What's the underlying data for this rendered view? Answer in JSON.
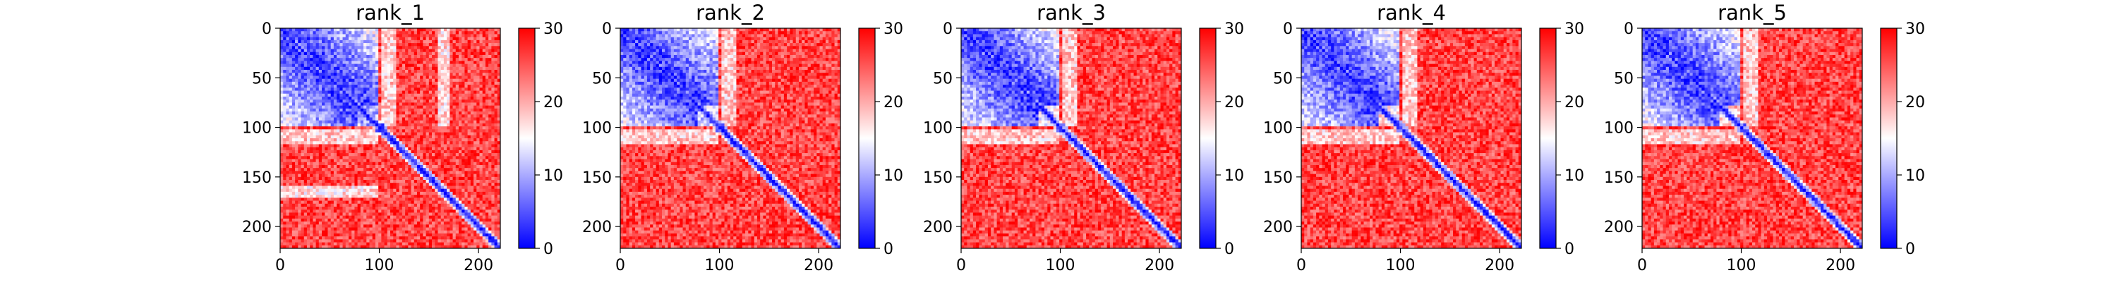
{
  "chart_data": [
    {
      "type": "heatmap",
      "title": "rank_1",
      "x_ticks": [
        0,
        100,
        200
      ],
      "y_ticks": [
        0,
        50,
        100,
        150,
        200
      ],
      "x_range": [
        0,
        222
      ],
      "y_range": [
        0,
        222
      ],
      "colorbar": {
        "ticks": [
          0,
          10,
          20,
          30
        ],
        "range": [
          0,
          30
        ],
        "colormap": "bwr"
      },
      "matrix_size": 222,
      "notes": "Pairwise distance matrix; low values (blue) on diagonal and within residues 0-100 block; high values (red) elsewhere."
    },
    {
      "type": "heatmap",
      "title": "rank_2",
      "x_ticks": [
        0,
        100,
        200
      ],
      "y_ticks": [
        0,
        50,
        100,
        150,
        200
      ],
      "x_range": [
        0,
        222
      ],
      "y_range": [
        0,
        222
      ],
      "colorbar": {
        "ticks": [
          0,
          10,
          20,
          30
        ],
        "range": [
          0,
          30
        ],
        "colormap": "bwr"
      },
      "matrix_size": 222
    },
    {
      "type": "heatmap",
      "title": "rank_3",
      "x_ticks": [
        0,
        100,
        200
      ],
      "y_ticks": [
        0,
        50,
        100,
        150,
        200
      ],
      "x_range": [
        0,
        222
      ],
      "y_range": [
        0,
        222
      ],
      "colorbar": {
        "ticks": [
          0,
          10,
          20,
          30
        ],
        "range": [
          0,
          30
        ],
        "colormap": "bwr"
      },
      "matrix_size": 222
    },
    {
      "type": "heatmap",
      "title": "rank_4",
      "x_ticks": [
        0,
        100,
        200
      ],
      "y_ticks": [
        0,
        50,
        100,
        150,
        200
      ],
      "x_range": [
        0,
        222
      ],
      "y_range": [
        0,
        222
      ],
      "colorbar": {
        "ticks": [
          0,
          10,
          20,
          30
        ],
        "range": [
          0,
          30
        ],
        "colormap": "bwr"
      },
      "matrix_size": 222
    },
    {
      "type": "heatmap",
      "title": "rank_5",
      "x_ticks": [
        0,
        100,
        200
      ],
      "y_ticks": [
        0,
        50,
        100,
        150,
        200
      ],
      "x_range": [
        0,
        222
      ],
      "y_range": [
        0,
        222
      ],
      "colorbar": {
        "ticks": [
          0,
          10,
          20,
          30
        ],
        "range": [
          0,
          30
        ],
        "colormap": "bwr"
      },
      "matrix_size": 222
    }
  ],
  "colors": {
    "low": "#0000ff",
    "mid": "#ffffff",
    "high": "#ff0000",
    "axis": "#000000"
  }
}
